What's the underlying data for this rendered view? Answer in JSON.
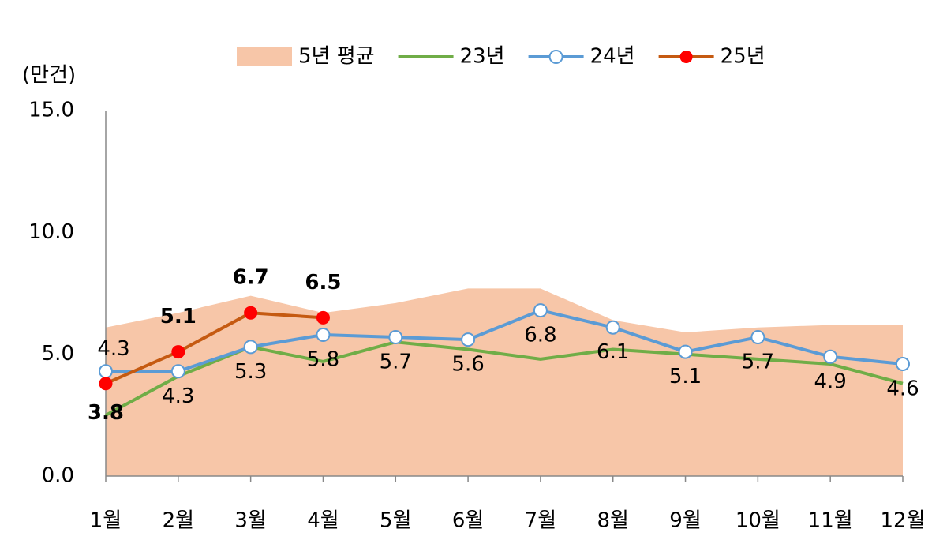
{
  "chart_data": {
    "type": "line",
    "y_unit_label": "(만건)",
    "categories": [
      "1월",
      "2월",
      "3월",
      "4월",
      "5월",
      "6월",
      "7월",
      "8월",
      "9월",
      "10월",
      "11월",
      "12월"
    ],
    "ylim": [
      0,
      15
    ],
    "yticks": [
      {
        "value": 0,
        "label": "0.0"
      },
      {
        "value": 5,
        "label": "5.0"
      },
      {
        "value": 10,
        "label": "10.0"
      },
      {
        "value": 15,
        "label": "15.0"
      }
    ],
    "grid": false,
    "legend": "top",
    "series": [
      {
        "name": "5년 평균",
        "type": "area",
        "color": "#f7c6a8",
        "values": [
          6.1,
          6.7,
          7.4,
          6.7,
          7.1,
          7.7,
          7.7,
          6.4,
          5.9,
          6.1,
          6.2,
          6.2
        ]
      },
      {
        "name": "23년",
        "type": "line",
        "color": "#70ad47",
        "values": [
          2.5,
          4.1,
          5.3,
          4.7,
          5.5,
          5.2,
          4.8,
          5.2,
          5.0,
          4.8,
          4.6,
          3.8
        ]
      },
      {
        "name": "24년",
        "type": "line",
        "color": "#5b9bd5",
        "marker": "hollow",
        "show_labels": true,
        "values": [
          4.3,
          4.3,
          5.3,
          5.8,
          5.7,
          5.6,
          6.8,
          6.1,
          5.1,
          5.7,
          4.9,
          4.6
        ]
      },
      {
        "name": "25년",
        "type": "line",
        "color": "#c55a11",
        "marker": "filled",
        "marker_color": "#ff0000",
        "show_labels": true,
        "bold_labels": true,
        "values": [
          3.8,
          5.1,
          6.7,
          6.5,
          null,
          null,
          null,
          null,
          null,
          null,
          null,
          null
        ]
      }
    ]
  }
}
